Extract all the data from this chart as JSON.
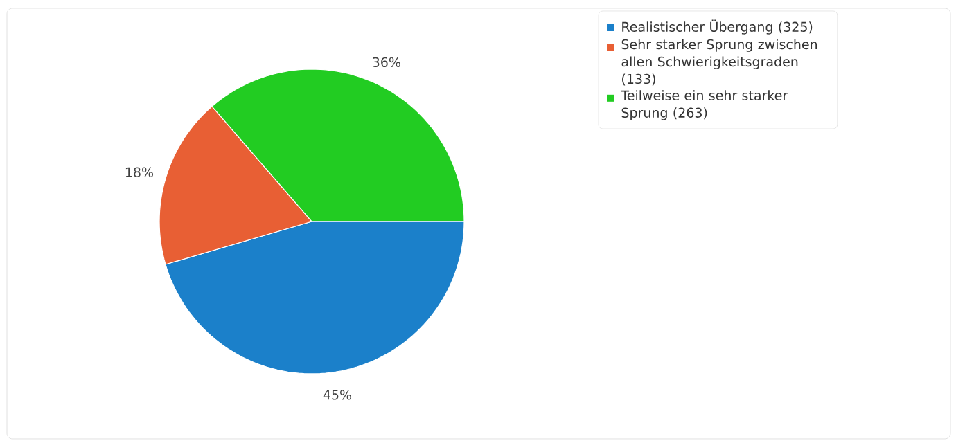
{
  "chart_data": {
    "type": "pie",
    "categories": [
      "Realistischer Übergang (325)",
      "Sehr starker Sprung zwischen allen Schwierigkeitsgraden (133)",
      "Teilweise ein sehr starker Sprung (263)"
    ],
    "values": [
      45,
      18,
      36
    ],
    "value_labels": [
      "45%",
      "18%",
      "36%"
    ],
    "colors": [
      "#1b80ca",
      "#e85f34",
      "#22cc22"
    ],
    "legend": "top right"
  }
}
